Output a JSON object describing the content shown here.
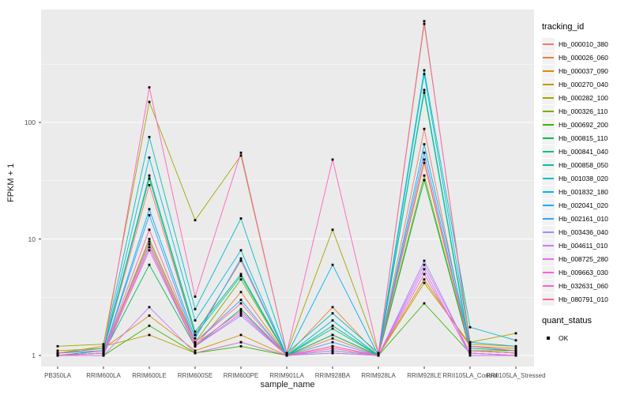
{
  "chart_data": {
    "type": "line",
    "title": "",
    "xlabel": "sample_name",
    "ylabel": "FPKM + 1",
    "y_scale": "log10",
    "y_ticks": [
      1,
      10,
      100
    ],
    "y_minor": [
      3.1623,
      31.623,
      316.23
    ],
    "ylim": [
      0.9,
      1000
    ],
    "grid": true,
    "legend_position": "right",
    "point_shape": "filled-square",
    "point_color": "#000000",
    "categories": [
      "PB350LA",
      "RRIM600LA",
      "RRIM600LE",
      "RRIM600SE",
      "RRIM600PE",
      "RRIM901LA",
      "RRIM928BA",
      "RRIM928LA",
      "RRIM928LE",
      "RRII105LA_Control",
      "RRII105LA_Stressed"
    ],
    "series": [
      {
        "name": "Hb_000010_380",
        "color": "#F8766D",
        "values": [
          1.05,
          1.1,
          29,
          1.5,
          6.5,
          1,
          1.4,
          1,
          88,
          1.05,
          1
        ]
      },
      {
        "name": "Hb_000026_060",
        "color": "#EA8331",
        "values": [
          1,
          1.05,
          9,
          1.2,
          3.5,
          1,
          2.6,
          1,
          45,
          1.1,
          1.05
        ]
      },
      {
        "name": "Hb_000037_090",
        "color": "#D89000",
        "values": [
          1.1,
          1.15,
          2.2,
          1.1,
          1.5,
          1,
          1.2,
          1,
          4.5,
          1.2,
          1.15
        ]
      },
      {
        "name": "Hb_000270_040",
        "color": "#C09B00",
        "values": [
          1.05,
          1.2,
          1.5,
          1.05,
          1.3,
          1,
          1.1,
          1,
          4.2,
          1.25,
          1.2
        ]
      },
      {
        "name": "Hb_000282_100",
        "color": "#A3A500",
        "values": [
          1.2,
          1.25,
          150,
          14.5,
          52,
          1.05,
          12,
          1.05,
          700,
          1.3,
          1.55
        ]
      },
      {
        "name": "Hb_000326_110",
        "color": "#7CAE00",
        "values": [
          1,
          1.05,
          10,
          1.3,
          4.5,
          1,
          1.5,
          1,
          35,
          1.1,
          1.1
        ]
      },
      {
        "name": "Hb_000692_200",
        "color": "#39B600",
        "values": [
          1,
          1,
          1.8,
          1.05,
          1.2,
          1,
          1.05,
          1,
          2.8,
          1.05,
          1
        ]
      },
      {
        "name": "Hb_000815_110",
        "color": "#00BB4E",
        "values": [
          1,
          1.05,
          6,
          1.2,
          2.5,
          1,
          1.5,
          1,
          32,
          1.1,
          1.05
        ]
      },
      {
        "name": "Hb_000841_040",
        "color": "#00BF7D",
        "values": [
          1.05,
          1.1,
          35,
          1.6,
          5,
          1,
          1.8,
          1,
          190,
          1.15,
          1.1
        ]
      },
      {
        "name": "Hb_000858_050",
        "color": "#00C1A3",
        "values": [
          1,
          1.1,
          33,
          1.5,
          4.8,
          1,
          1.7,
          1,
          180,
          1.1,
          1.05
        ]
      },
      {
        "name": "Hb_001038_020",
        "color": "#00BFC4",
        "values": [
          1.05,
          1.15,
          75,
          2.5,
          15,
          1.05,
          2.3,
          1.05,
          280,
          1.75,
          1.35
        ]
      },
      {
        "name": "Hb_001832_180",
        "color": "#00BAE0",
        "values": [
          1,
          1.1,
          50,
          2,
          8,
          1,
          2,
          1,
          260,
          1.3,
          1.2
        ]
      },
      {
        "name": "Hb_002041_020",
        "color": "#00B0F6",
        "values": [
          1,
          1.05,
          18,
          1.4,
          6.8,
          1,
          6,
          1,
          65,
          1.2,
          1.1
        ]
      },
      {
        "name": "Hb_002161_010",
        "color": "#35A2FF",
        "values": [
          1,
          1.05,
          16,
          1.3,
          3,
          1,
          1.3,
          1,
          55,
          1.1,
          1.05
        ]
      },
      {
        "name": "Hb_003436_040",
        "color": "#9590FF",
        "values": [
          1,
          1,
          8.5,
          1.2,
          2.2,
          1,
          1.1,
          1,
          6.5,
          1.05,
          1
        ]
      },
      {
        "name": "Hb_004611_010",
        "color": "#C77CFF",
        "values": [
          1,
          1,
          2.6,
          1.05,
          1.3,
          1,
          1.05,
          1,
          5.5,
          1,
          1
        ]
      },
      {
        "name": "Hb_008725_280",
        "color": "#E76BF3",
        "values": [
          1,
          1.05,
          9.5,
          1.25,
          2.4,
          1,
          1.2,
          1,
          6,
          1.05,
          1
        ]
      },
      {
        "name": "Hb_009663_030",
        "color": "#FA62DB",
        "values": [
          1,
          1.05,
          8,
          1.2,
          2.3,
          1,
          1.15,
          1,
          5,
          1.05,
          1
        ]
      },
      {
        "name": "Hb_032631_060",
        "color": "#FF62BC",
        "values": [
          1.05,
          1.1,
          200,
          3.2,
          55,
          1.05,
          48,
          1.05,
          740,
          1.2,
          1.1
        ]
      },
      {
        "name": "Hb_080791_010",
        "color": "#FF6A98",
        "values": [
          1,
          1.05,
          12,
          1.3,
          2.8,
          1,
          1.2,
          1,
          48,
          1.1,
          1.05
        ]
      }
    ]
  },
  "legend": {
    "tracking_title": "tracking_id",
    "quant_title": "quant_status",
    "quant_items": [
      {
        "label": "OK"
      }
    ]
  },
  "colors": {
    "panel_bg": "#EBEBEB",
    "grid_major": "#FFFFFF",
    "grid_minor": "#FFFFFF",
    "tick_mark": "#333333",
    "axis_text": "#4D4D4D",
    "legend_key_bg": "#F2F2F2"
  }
}
